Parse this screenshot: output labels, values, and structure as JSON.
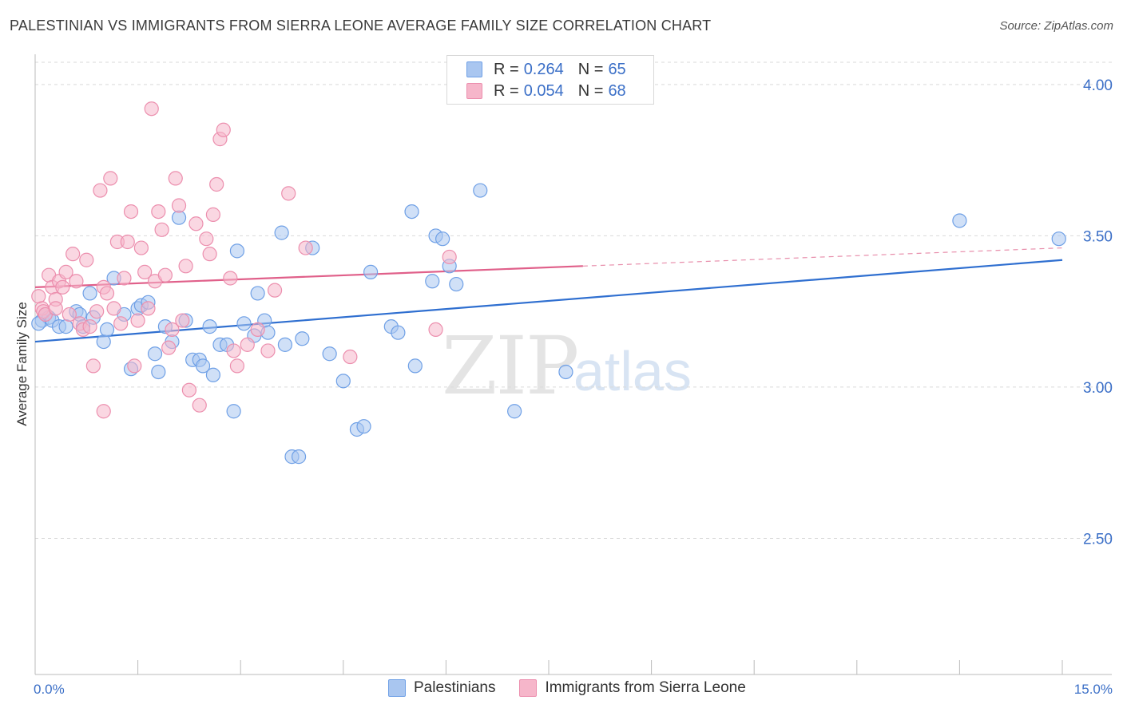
{
  "header": {
    "title": "PALESTINIAN VS IMMIGRANTS FROM SIERRA LEONE AVERAGE FAMILY SIZE CORRELATION CHART",
    "source": "Source: ZipAtlas.com"
  },
  "watermark": {
    "zip": "ZIP",
    "atlas": "atlas"
  },
  "legend": {
    "rows": [
      {
        "r_label": "R =",
        "r_value": "0.264",
        "n_label": "N =",
        "n_value": "65",
        "color": "#a9c6f0"
      },
      {
        "r_label": "R =",
        "r_value": "0.054",
        "n_label": "N =",
        "n_value": "68",
        "color": "#f6b6ca"
      }
    ]
  },
  "bottom_legend": {
    "items": [
      {
        "label": "Palestinians",
        "color": "#a9c6f0"
      },
      {
        "label": "Immigrants from Sierra Leone",
        "color": "#f6b6ca"
      }
    ]
  },
  "chart_data": {
    "type": "scatter",
    "title": "PALESTINIAN VS IMMIGRANTS FROM SIERRA LEONE AVERAGE FAMILY SIZE CORRELATION CHART",
    "xlabel": "",
    "ylabel": "Average Family Size",
    "xlim": [
      0,
      15
    ],
    "ylim": [
      2.05,
      4.1
    ],
    "x_tick_labels": [
      "0.0%",
      "15.0%"
    ],
    "y_ticks": [
      2.5,
      3.0,
      3.5,
      4.0
    ],
    "y_tick_labels": [
      "2.50",
      "3.00",
      "3.50",
      "4.00"
    ],
    "grid": true,
    "series": [
      {
        "name": "Palestinians",
        "color": "#6fa0e6",
        "fill": "#a9c6f0",
        "trend": {
          "x": [
            0,
            15
          ],
          "y": [
            3.15,
            3.42
          ]
        },
        "points": [
          [
            0.1,
            3.22
          ],
          [
            0.15,
            3.24
          ],
          [
            0.2,
            3.23
          ],
          [
            0.25,
            3.22
          ],
          [
            0.35,
            3.2
          ],
          [
            0.45,
            3.2
          ],
          [
            0.6,
            3.25
          ],
          [
            0.65,
            3.24
          ],
          [
            0.7,
            3.2
          ],
          [
            0.8,
            3.31
          ],
          [
            0.85,
            3.23
          ],
          [
            1.0,
            3.15
          ],
          [
            1.05,
            3.19
          ],
          [
            1.15,
            3.36
          ],
          [
            1.3,
            3.24
          ],
          [
            1.4,
            3.06
          ],
          [
            1.5,
            3.26
          ],
          [
            1.55,
            3.27
          ],
          [
            1.65,
            3.28
          ],
          [
            1.75,
            3.11
          ],
          [
            1.8,
            3.05
          ],
          [
            1.9,
            3.2
          ],
          [
            2.0,
            3.15
          ],
          [
            2.1,
            3.56
          ],
          [
            2.2,
            3.22
          ],
          [
            2.3,
            3.09
          ],
          [
            2.4,
            3.09
          ],
          [
            2.45,
            3.07
          ],
          [
            2.55,
            3.2
          ],
          [
            2.6,
            3.04
          ],
          [
            2.7,
            3.14
          ],
          [
            2.8,
            3.14
          ],
          [
            2.9,
            2.92
          ],
          [
            2.95,
            3.45
          ],
          [
            3.05,
            3.21
          ],
          [
            3.2,
            3.17
          ],
          [
            3.25,
            3.31
          ],
          [
            3.35,
            3.22
          ],
          [
            3.4,
            3.18
          ],
          [
            3.6,
            3.51
          ],
          [
            3.65,
            3.14
          ],
          [
            3.75,
            2.77
          ],
          [
            3.85,
            2.77
          ],
          [
            3.9,
            3.16
          ],
          [
            4.05,
            3.46
          ],
          [
            4.3,
            3.11
          ],
          [
            4.5,
            3.02
          ],
          [
            4.7,
            2.86
          ],
          [
            4.8,
            2.87
          ],
          [
            4.9,
            3.38
          ],
          [
            5.2,
            3.2
          ],
          [
            5.3,
            3.18
          ],
          [
            5.5,
            3.58
          ],
          [
            5.55,
            3.07
          ],
          [
            5.8,
            3.35
          ],
          [
            5.85,
            3.5
          ],
          [
            5.95,
            3.49
          ],
          [
            6.05,
            3.4
          ],
          [
            6.15,
            3.34
          ],
          [
            6.5,
            3.65
          ],
          [
            7.0,
            2.92
          ],
          [
            7.75,
            3.05
          ],
          [
            13.5,
            3.55
          ],
          [
            14.95,
            3.49
          ],
          [
            0.05,
            3.21
          ]
        ]
      },
      {
        "name": "Immigrants from Sierra Leone",
        "color": "#ec8fae",
        "fill": "#f6b6ca",
        "trend": {
          "x": [
            0,
            8
          ],
          "y": [
            3.33,
            3.4
          ]
        },
        "trend_dashed": {
          "x": [
            8,
            15
          ],
          "y": [
            3.4,
            3.46
          ]
        },
        "points": [
          [
            0.05,
            3.3
          ],
          [
            0.1,
            3.26
          ],
          [
            0.12,
            3.25
          ],
          [
            0.2,
            3.37
          ],
          [
            0.25,
            3.33
          ],
          [
            0.3,
            3.29
          ],
          [
            0.35,
            3.35
          ],
          [
            0.4,
            3.33
          ],
          [
            0.45,
            3.38
          ],
          [
            0.5,
            3.24
          ],
          [
            0.55,
            3.44
          ],
          [
            0.6,
            3.35
          ],
          [
            0.65,
            3.21
          ],
          [
            0.7,
            3.19
          ],
          [
            0.75,
            3.42
          ],
          [
            0.8,
            3.2
          ],
          [
            0.85,
            3.07
          ],
          [
            0.9,
            3.25
          ],
          [
            0.95,
            3.65
          ],
          [
            1.0,
            3.33
          ],
          [
            1.05,
            3.31
          ],
          [
            1.1,
            3.69
          ],
          [
            1.15,
            3.26
          ],
          [
            1.2,
            3.48
          ],
          [
            1.25,
            3.21
          ],
          [
            1.3,
            3.36
          ],
          [
            1.35,
            3.48
          ],
          [
            1.4,
            3.58
          ],
          [
            1.45,
            3.07
          ],
          [
            1.5,
            3.22
          ],
          [
            1.55,
            3.46
          ],
          [
            1.6,
            3.38
          ],
          [
            1.65,
            3.26
          ],
          [
            1.7,
            3.92
          ],
          [
            1.75,
            3.35
          ],
          [
            1.8,
            3.58
          ],
          [
            1.85,
            3.52
          ],
          [
            1.9,
            3.37
          ],
          [
            1.95,
            3.13
          ],
          [
            2.0,
            3.19
          ],
          [
            2.05,
            3.69
          ],
          [
            2.1,
            3.6
          ],
          [
            2.15,
            3.22
          ],
          [
            2.2,
            3.4
          ],
          [
            2.25,
            2.99
          ],
          [
            2.35,
            3.54
          ],
          [
            2.4,
            2.94
          ],
          [
            2.5,
            3.49
          ],
          [
            2.55,
            3.44
          ],
          [
            2.6,
            3.57
          ],
          [
            2.65,
            3.67
          ],
          [
            2.7,
            3.82
          ],
          [
            2.75,
            3.85
          ],
          [
            2.85,
            3.36
          ],
          [
            2.9,
            3.12
          ],
          [
            2.95,
            3.07
          ],
          [
            3.1,
            3.14
          ],
          [
            3.25,
            3.19
          ],
          [
            3.4,
            3.12
          ],
          [
            3.5,
            3.32
          ],
          [
            3.7,
            3.64
          ],
          [
            3.95,
            3.46
          ],
          [
            4.6,
            3.1
          ],
          [
            5.85,
            3.19
          ],
          [
            6.05,
            3.43
          ],
          [
            0.15,
            3.24
          ],
          [
            0.3,
            3.26
          ],
          [
            1.0,
            2.92
          ]
        ]
      }
    ]
  }
}
